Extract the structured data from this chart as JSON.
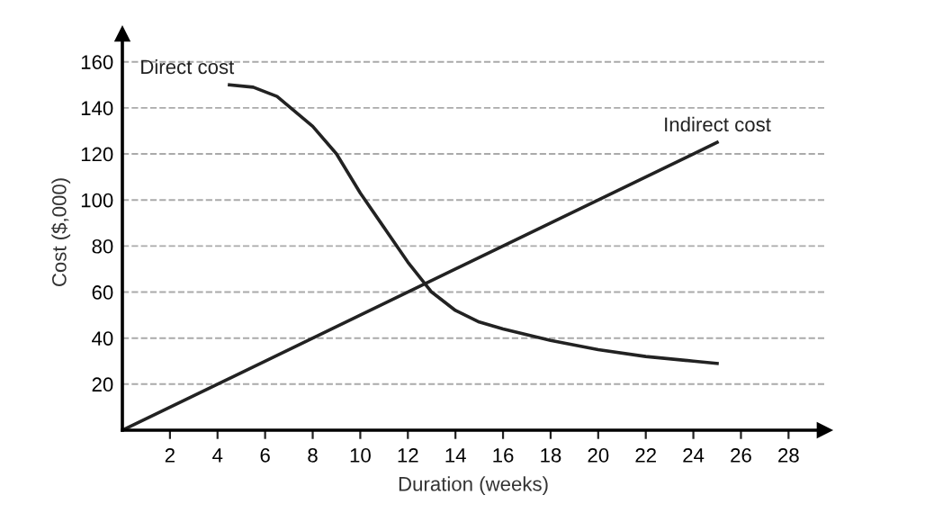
{
  "chart_data": {
    "type": "line",
    "xlabel": "Duration (weeks)",
    "ylabel": "Cost ($,000)",
    "xlim": [
      0,
      29.5
    ],
    "ylim": [
      0,
      172
    ],
    "xticks": [
      2,
      4,
      6,
      8,
      10,
      12,
      14,
      16,
      18,
      20,
      22,
      24,
      26,
      28
    ],
    "yticks": [
      20,
      40,
      60,
      80,
      100,
      120,
      140,
      160
    ],
    "grid": "y",
    "legend": false,
    "marker": "none",
    "line_style": "solid",
    "series": [
      {
        "name": "Direct cost",
        "color": "#222222",
        "x": [
          4.5,
          5.5,
          6.5,
          8,
          9,
          10,
          11,
          12,
          13,
          14,
          15,
          16,
          18,
          20,
          22,
          24,
          25
        ],
        "values": [
          150,
          149,
          145,
          132,
          120,
          103,
          88,
          73,
          60,
          52,
          47,
          44,
          39,
          35,
          32,
          30,
          29
        ]
      },
      {
        "name": "Indirect cost",
        "color": "#222222",
        "x": [
          0,
          25
        ],
        "values": [
          0,
          125
        ]
      }
    ]
  }
}
